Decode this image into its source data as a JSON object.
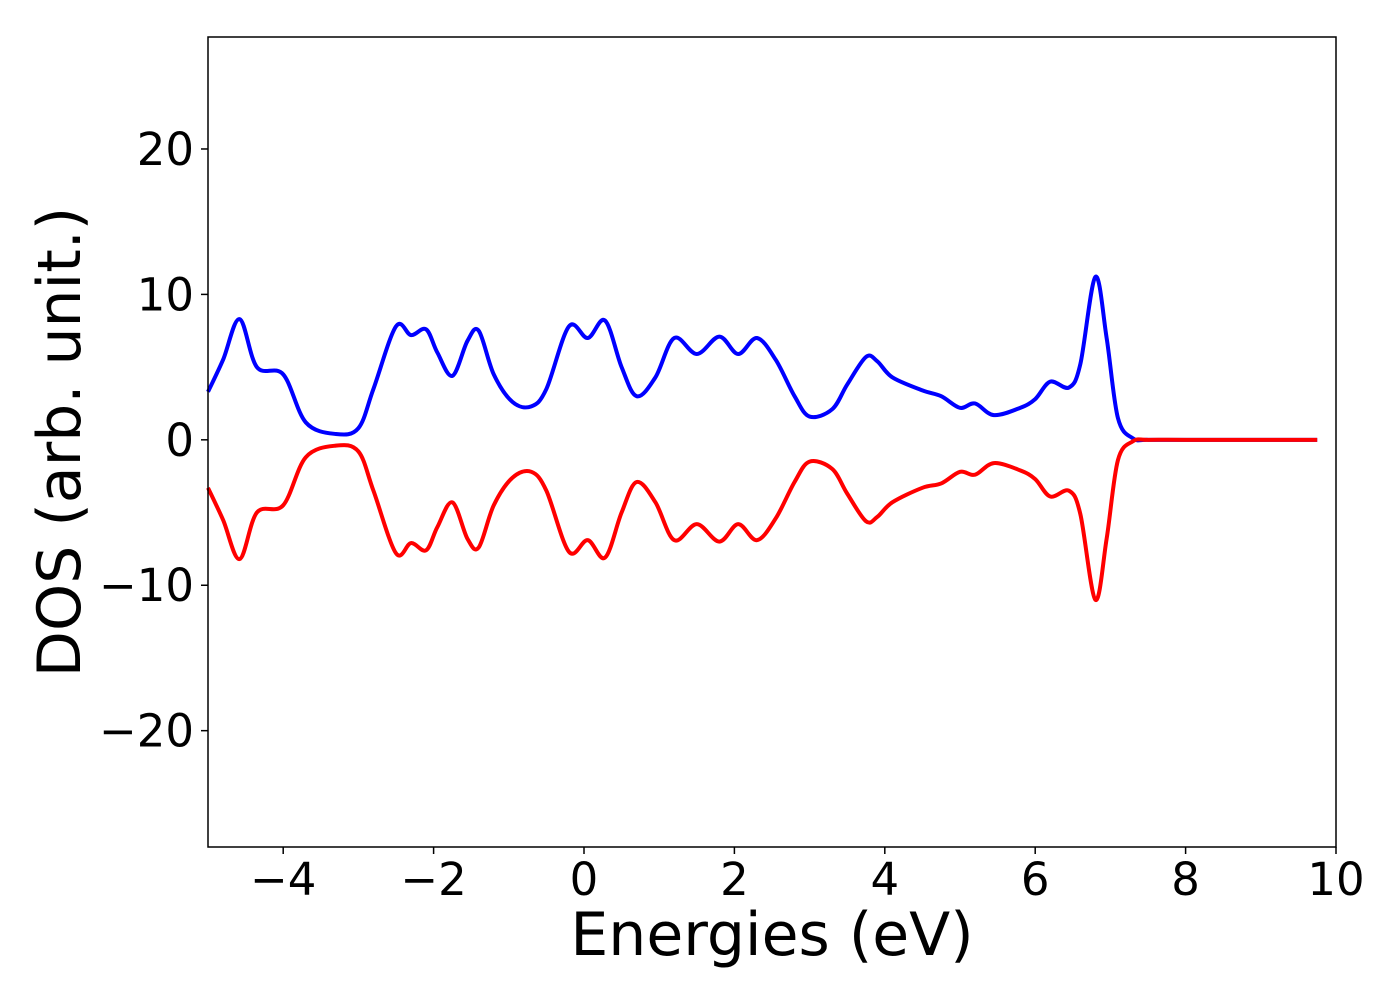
{
  "chart_data": {
    "type": "line",
    "title": "",
    "xlabel": "Energies (eV)",
    "ylabel": "DOS (arb. unit.)",
    "xlim": [
      -5,
      10
    ],
    "ylim": [
      -28,
      27.7
    ],
    "xticks": [
      -4,
      -2,
      0,
      2,
      4,
      6,
      8,
      10
    ],
    "xtick_labels": [
      "−4",
      "−2",
      "0",
      "2",
      "4",
      "6",
      "8",
      "10"
    ],
    "yticks": [
      -20,
      -10,
      0,
      10,
      20
    ],
    "ytick_labels": [
      "−20",
      "−10",
      "0",
      "10",
      "20"
    ],
    "grid": false,
    "legend": "none",
    "series": [
      {
        "color": "#0000ff",
        "x": [
          -5.0,
          -4.8,
          -4.58,
          -4.35,
          -4.0,
          -3.7,
          -3.3,
          -3.0,
          -2.8,
          -2.5,
          -2.3,
          -2.1,
          -1.95,
          -1.75,
          -1.55,
          -1.4,
          -1.2,
          -0.95,
          -0.7,
          -0.5,
          -0.2,
          0.05,
          0.28,
          0.5,
          0.7,
          0.95,
          1.2,
          1.5,
          1.8,
          2.05,
          2.3,
          2.55,
          2.8,
          3.0,
          3.3,
          3.5,
          3.75,
          3.9,
          4.1,
          4.5,
          4.75,
          5.0,
          5.2,
          5.45,
          5.8,
          6.0,
          6.2,
          6.45,
          6.6,
          6.8,
          6.95,
          7.1,
          7.3,
          7.5,
          8.0,
          9.0,
          9.75
        ],
        "y": [
          3.3,
          5.5,
          8.3,
          5.0,
          4.5,
          1.2,
          0.4,
          0.8,
          3.5,
          7.8,
          7.2,
          7.6,
          6.0,
          4.4,
          6.8,
          7.5,
          4.5,
          2.6,
          2.3,
          3.5,
          7.8,
          7.0,
          8.2,
          5.0,
          3.0,
          4.3,
          7.0,
          5.9,
          7.1,
          5.9,
          7.0,
          5.5,
          3.0,
          1.6,
          2.1,
          3.8,
          5.7,
          5.4,
          4.3,
          3.4,
          3.0,
          2.2,
          2.5,
          1.7,
          2.2,
          2.8,
          4.0,
          3.6,
          5.2,
          11.2,
          7.0,
          1.5,
          0.1,
          0.0,
          0.0,
          0.0,
          0.0
        ]
      },
      {
        "color": "#ff0000",
        "x": [
          -5.0,
          -4.8,
          -4.58,
          -4.35,
          -4.0,
          -3.7,
          -3.3,
          -3.0,
          -2.8,
          -2.5,
          -2.3,
          -2.1,
          -1.95,
          -1.75,
          -1.55,
          -1.4,
          -1.2,
          -0.95,
          -0.7,
          -0.5,
          -0.2,
          0.05,
          0.28,
          0.5,
          0.7,
          0.95,
          1.2,
          1.5,
          1.8,
          2.05,
          2.3,
          2.55,
          2.8,
          3.0,
          3.3,
          3.5,
          3.75,
          3.9,
          4.1,
          4.5,
          4.75,
          5.0,
          5.2,
          5.45,
          5.8,
          6.0,
          6.2,
          6.45,
          6.6,
          6.8,
          6.95,
          7.1,
          7.3,
          7.5,
          8.0,
          9.0,
          9.75
        ],
        "y": [
          -3.3,
          -5.5,
          -8.2,
          -5.0,
          -4.5,
          -1.2,
          -0.4,
          -0.8,
          -3.5,
          -7.8,
          -7.1,
          -7.6,
          -6.0,
          -4.3,
          -6.8,
          -7.4,
          -4.5,
          -2.6,
          -2.2,
          -3.5,
          -7.7,
          -6.9,
          -8.1,
          -5.0,
          -2.9,
          -4.3,
          -6.9,
          -5.8,
          -7.0,
          -5.8,
          -6.9,
          -5.4,
          -2.9,
          -1.5,
          -2.0,
          -3.7,
          -5.6,
          -5.3,
          -4.3,
          -3.3,
          -3.0,
          -2.2,
          -2.4,
          -1.6,
          -2.1,
          -2.7,
          -3.9,
          -3.5,
          -5.1,
          -11.0,
          -6.8,
          -1.4,
          -0.1,
          0.0,
          0.0,
          0.0,
          0.0
        ]
      }
    ]
  }
}
